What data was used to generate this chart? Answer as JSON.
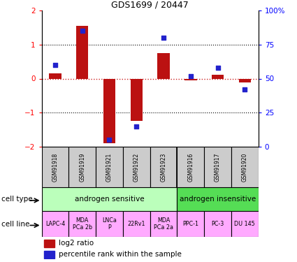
{
  "title": "GDS1699 / 20447",
  "samples": [
    "GSM91918",
    "GSM91919",
    "GSM91921",
    "GSM91922",
    "GSM91923",
    "GSM91916",
    "GSM91917",
    "GSM91920"
  ],
  "log2_ratio": [
    0.15,
    1.55,
    -1.9,
    -1.25,
    0.75,
    -0.05,
    0.12,
    -0.12
  ],
  "percentile_rank": [
    60,
    85,
    5,
    15,
    80,
    52,
    58,
    42
  ],
  "cell_type_groups": [
    {
      "label": "androgen sensitive",
      "start": 0,
      "end": 5,
      "color": "#bbffbb"
    },
    {
      "label": "androgen insensitive",
      "start": 5,
      "end": 8,
      "color": "#55dd55"
    }
  ],
  "cell_lines": [
    {
      "label": "LAPC-4",
      "start": 0,
      "end": 1
    },
    {
      "label": "MDA\nPCa 2b",
      "start": 1,
      "end": 2
    },
    {
      "label": "LNCa\nP",
      "start": 2,
      "end": 3
    },
    {
      "label": "22Rv1",
      "start": 3,
      "end": 4
    },
    {
      "label": "MDA\nPCa 2a",
      "start": 4,
      "end": 5
    },
    {
      "label": "PPC-1",
      "start": 5,
      "end": 6
    },
    {
      "label": "PC-3",
      "start": 6,
      "end": 7
    },
    {
      "label": "DU 145",
      "start": 7,
      "end": 8
    }
  ],
  "cell_line_color": "#ffaaff",
  "bar_color": "#bb1111",
  "dot_color": "#2222cc",
  "ylim": [
    -2,
    2
  ],
  "y2lim": [
    0,
    100
  ],
  "yticks": [
    -2,
    -1,
    0,
    1,
    2
  ],
  "y2ticks": [
    0,
    25,
    50,
    75,
    100
  ],
  "y2ticklabels": [
    "0",
    "25",
    "50",
    "75",
    "100%"
  ],
  "hline_color": "#cc2222",
  "dotted_color": "#000000",
  "sample_box_color": "#cccccc",
  "bg_color": "#ffffff"
}
